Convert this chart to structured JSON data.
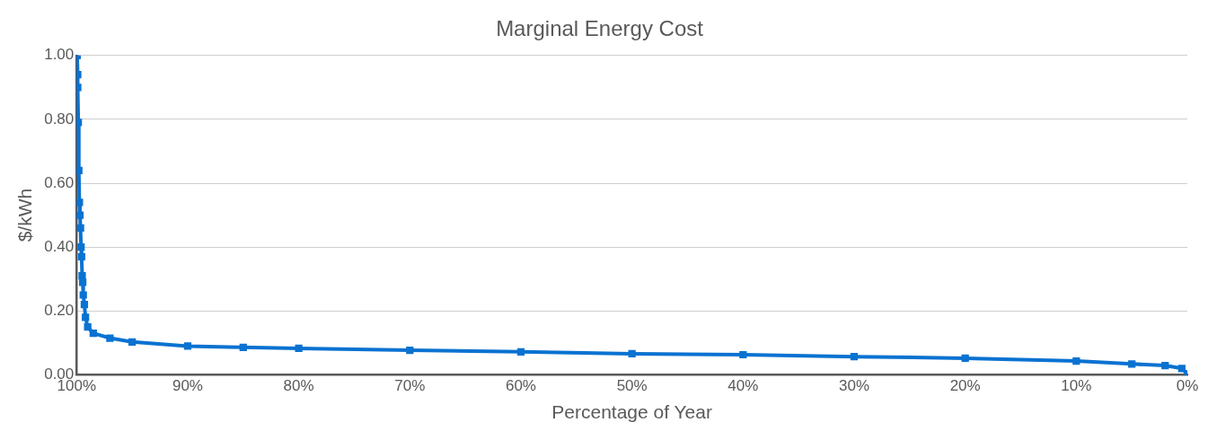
{
  "chart_data": {
    "type": "line",
    "title": "Marginal Energy Cost",
    "xlabel": "Percentage of Year",
    "ylabel": "$/kWh",
    "x": [
      99.95,
      99.9,
      99.9,
      99.85,
      99.8,
      99.75,
      99.7,
      99.65,
      99.6,
      99.55,
      99.5,
      99.45,
      99.4,
      99.3,
      99.2,
      99.0,
      98.5,
      97,
      95,
      90,
      85,
      80,
      70,
      60,
      50,
      40,
      30,
      20,
      10,
      5,
      2,
      0.5,
      0
    ],
    "values": [
      1.0,
      0.94,
      0.9,
      0.79,
      0.64,
      0.54,
      0.5,
      0.46,
      0.4,
      0.37,
      0.31,
      0.29,
      0.25,
      0.22,
      0.18,
      0.15,
      0.13,
      0.115,
      0.103,
      0.09,
      0.086,
      0.083,
      0.077,
      0.072,
      0.066,
      0.063,
      0.057,
      0.052,
      0.043,
      0.034,
      0.029,
      0.02,
      0.003
    ],
    "color": "#0a72d1",
    "marker": "square",
    "grid": "y",
    "legend": false,
    "xlim": [
      100,
      0
    ],
    "xticks": [
      {
        "value": 100,
        "label": "100%"
      },
      {
        "value": 90,
        "label": "90%"
      },
      {
        "value": 80,
        "label": "80%"
      },
      {
        "value": 70,
        "label": "70%"
      },
      {
        "value": 60,
        "label": "60%"
      },
      {
        "value": 50,
        "label": "50%"
      },
      {
        "value": 40,
        "label": "40%"
      },
      {
        "value": 30,
        "label": "30%"
      },
      {
        "value": 20,
        "label": "20%"
      },
      {
        "value": 10,
        "label": "10%"
      },
      {
        "value": 0,
        "label": "0%"
      }
    ],
    "ylim": [
      0,
      1
    ],
    "yticks": [
      {
        "value": 0,
        "label": "0.00"
      },
      {
        "value": 0.2,
        "label": "0.20"
      },
      {
        "value": 0.4,
        "label": "0.40"
      },
      {
        "value": 0.6,
        "label": "0.60"
      },
      {
        "value": 0.8,
        "label": "0.80"
      },
      {
        "value": 1,
        "label": "1.00"
      }
    ]
  }
}
